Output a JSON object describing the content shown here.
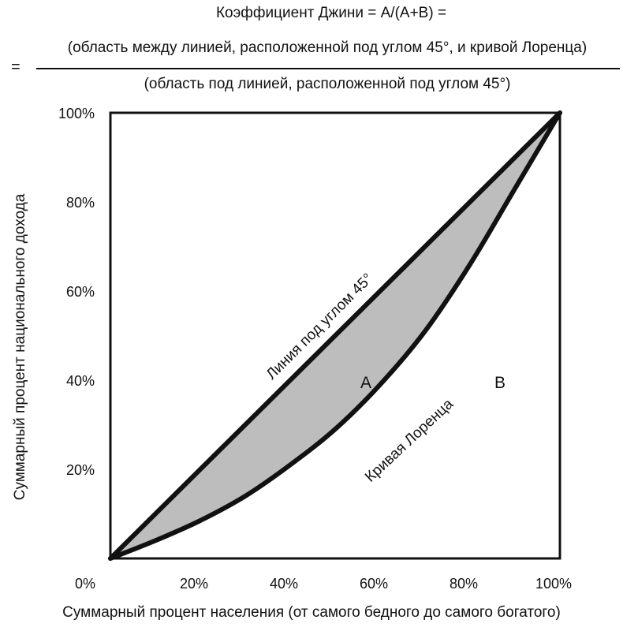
{
  "header": {
    "formula": "Коэффициент Джини = A/(A+B) =",
    "equals": "=",
    "numerator": "(область между линией, расположенной под углом 45°, и кривой Лоренца)",
    "denominator": "(область под линией, расположенной под углом 45°)"
  },
  "chart_data": {
    "type": "area",
    "title": "Коэффициент Джини = A/(A+B)",
    "xlabel": "Суммарный процент населения (от самого бедного до самого богатого)",
    "ylabel": "Суммарный процент национального дохода",
    "xlim": [
      0,
      100
    ],
    "ylim": [
      0,
      100
    ],
    "x_ticks": [
      "0%",
      "20%",
      "40%",
      "60%",
      "80%",
      "100%"
    ],
    "y_ticks": [
      "20%",
      "40%",
      "60%",
      "80%",
      "100%"
    ],
    "series": [
      {
        "name": "Линия под углом 45°",
        "x": [
          0,
          100
        ],
        "y": [
          0,
          100
        ]
      },
      {
        "name": "Кривая Лоренца",
        "x": [
          0,
          10,
          20,
          30,
          40,
          50,
          60,
          70,
          80,
          90,
          100
        ],
        "y": [
          0,
          4,
          8.5,
          14,
          21,
          29,
          39,
          51,
          66,
          83,
          100
        ]
      }
    ],
    "annotations": {
      "diagonal_label": "Линия под углом 45°",
      "curve_label": "Кривая Лоренца",
      "region_a": "A",
      "region_b": "B"
    },
    "colors": {
      "fill_a": "#bdbdbd",
      "line": "#111111"
    }
  }
}
